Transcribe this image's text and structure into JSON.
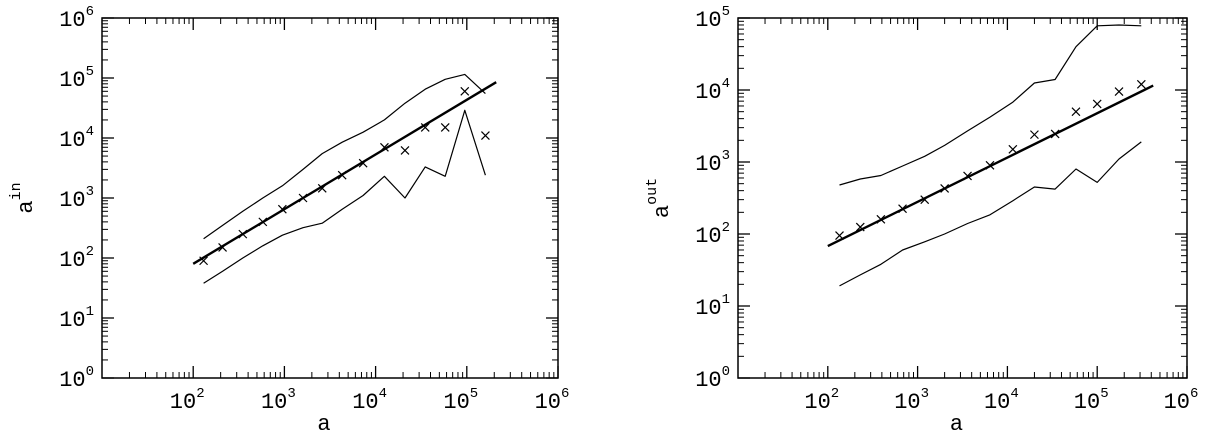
{
  "chart_data": [
    {
      "type": "scatter",
      "scale": {
        "x": "log",
        "y": "log"
      },
      "xlim": [
        10,
        1000000
      ],
      "ylim": [
        1,
        1000000
      ],
      "xlabel": "a",
      "ylabel": {
        "base": "a",
        "superscript": "in"
      },
      "xticks": [
        {
          "value": 100,
          "base": "10",
          "exp": "2"
        },
        {
          "value": 1000,
          "base": "10",
          "exp": "3"
        },
        {
          "value": 10000,
          "base": "10",
          "exp": "4"
        },
        {
          "value": 100000,
          "base": "10",
          "exp": "5"
        },
        {
          "value": 1000000,
          "base": "10",
          "exp": "6"
        }
      ],
      "yticks": [
        {
          "value": 1,
          "base": "10",
          "exp": "0"
        },
        {
          "value": 10,
          "base": "10",
          "exp": "1"
        },
        {
          "value": 100,
          "base": "10",
          "exp": "2"
        },
        {
          "value": 1000,
          "base": "10",
          "exp": "3"
        },
        {
          "value": 10000,
          "base": "10",
          "exp": "4"
        },
        {
          "value": 100000,
          "base": "10",
          "exp": "5"
        },
        {
          "value": 1000000,
          "base": "10",
          "exp": "6"
        }
      ],
      "grid": false,
      "legend": false,
      "series": [
        {
          "style": "markers-x",
          "points": [
            [
              130,
              90
            ],
            [
              210,
              150
            ],
            [
              350,
              250
            ],
            [
              580,
              400
            ],
            [
              950,
              650
            ],
            [
              1600,
              1000
            ],
            [
              2600,
              1450
            ],
            [
              4300,
              2400
            ],
            [
              7300,
              3800
            ],
            [
              12500,
              7000
            ],
            [
              21000,
              6200
            ],
            [
              35000,
              15000
            ],
            [
              58000,
              15000
            ],
            [
              95000,
              60000
            ],
            [
              160000,
              11000
            ]
          ]
        },
        {
          "style": "line-thick",
          "points": [
            [
              100,
              80
            ],
            [
              210000,
              85000
            ]
          ]
        },
        {
          "style": "line",
          "points": [
            [
              130,
              210
            ],
            [
              210,
              350
            ],
            [
              350,
              600
            ],
            [
              580,
              1000
            ],
            [
              950,
              1600
            ],
            [
              1600,
              3000
            ],
            [
              2600,
              5500
            ],
            [
              4300,
              8500
            ],
            [
              7300,
              12500
            ],
            [
              12500,
              20000
            ],
            [
              21000,
              38000
            ],
            [
              35000,
              65000
            ],
            [
              58000,
              95000
            ],
            [
              95000,
              115000
            ],
            [
              160000,
              55000
            ]
          ]
        },
        {
          "style": "line",
          "points": [
            [
              130,
              38
            ],
            [
              210,
              60
            ],
            [
              350,
              100
            ],
            [
              580,
              160
            ],
            [
              950,
              240
            ],
            [
              1600,
              320
            ],
            [
              2600,
              380
            ],
            [
              4300,
              650
            ],
            [
              7300,
              1100
            ],
            [
              12500,
              2300
            ],
            [
              21000,
              1000
            ],
            [
              35000,
              3300
            ],
            [
              58000,
              2300
            ],
            [
              95000,
              29000
            ],
            [
              160000,
              2400
            ]
          ]
        }
      ]
    },
    {
      "type": "scatter",
      "scale": {
        "x": "log",
        "y": "log"
      },
      "xlim": [
        10,
        1000000
      ],
      "ylim": [
        1,
        100000
      ],
      "xlabel": "a",
      "ylabel": {
        "base": "a",
        "superscript": "out"
      },
      "xticks": [
        {
          "value": 100,
          "base": "10",
          "exp": "2"
        },
        {
          "value": 1000,
          "base": "10",
          "exp": "3"
        },
        {
          "value": 10000,
          "base": "10",
          "exp": "4"
        },
        {
          "value": 100000,
          "base": "10",
          "exp": "5"
        },
        {
          "value": 1000000,
          "base": "10",
          "exp": "6"
        }
      ],
      "yticks": [
        {
          "value": 1,
          "base": "10",
          "exp": "0"
        },
        {
          "value": 10,
          "base": "10",
          "exp": "1"
        },
        {
          "value": 100,
          "base": "10",
          "exp": "2"
        },
        {
          "value": 1000,
          "base": "10",
          "exp": "3"
        },
        {
          "value": 10000,
          "base": "10",
          "exp": "4"
        },
        {
          "value": 100000,
          "base": "10",
          "exp": "5"
        }
      ],
      "grid": false,
      "legend": false,
      "series": [
        {
          "style": "markers-x",
          "points": [
            [
              135,
              95
            ],
            [
              230,
              125
            ],
            [
              390,
              160
            ],
            [
              680,
              225
            ],
            [
              1200,
              300
            ],
            [
              2000,
              430
            ],
            [
              3600,
              640
            ],
            [
              6400,
              900
            ],
            [
              11500,
              1500
            ],
            [
              20000,
              2400
            ],
            [
              34000,
              2450
            ],
            [
              58000,
              5000
            ],
            [
              100000,
              6400
            ],
            [
              175000,
              9500
            ],
            [
              310000,
              12000
            ]
          ]
        },
        {
          "style": "line-thick",
          "points": [
            [
              100,
              68
            ],
            [
              420000,
              11500
            ]
          ]
        },
        {
          "style": "line",
          "points": [
            [
              135,
              480
            ],
            [
              230,
              580
            ],
            [
              390,
              650
            ],
            [
              680,
              880
            ],
            [
              1200,
              1200
            ],
            [
              2000,
              1700
            ],
            [
              3600,
              2700
            ],
            [
              6400,
              4200
            ],
            [
              11500,
              6800
            ],
            [
              20000,
              12500
            ],
            [
              34000,
              14000
            ],
            [
              58000,
              40000
            ],
            [
              100000,
              78000
            ],
            [
              175000,
              80000
            ],
            [
              310000,
              78000
            ]
          ]
        },
        {
          "style": "line",
          "points": [
            [
              135,
              19
            ],
            [
              230,
              27
            ],
            [
              390,
              38
            ],
            [
              680,
              60
            ],
            [
              1200,
              78
            ],
            [
              2000,
              100
            ],
            [
              3600,
              140
            ],
            [
              6400,
              185
            ],
            [
              11500,
              290
            ],
            [
              20000,
              450
            ],
            [
              34000,
              420
            ],
            [
              58000,
              800
            ],
            [
              100000,
              520
            ],
            [
              175000,
              1100
            ],
            [
              310000,
              1900
            ]
          ]
        }
      ]
    }
  ]
}
